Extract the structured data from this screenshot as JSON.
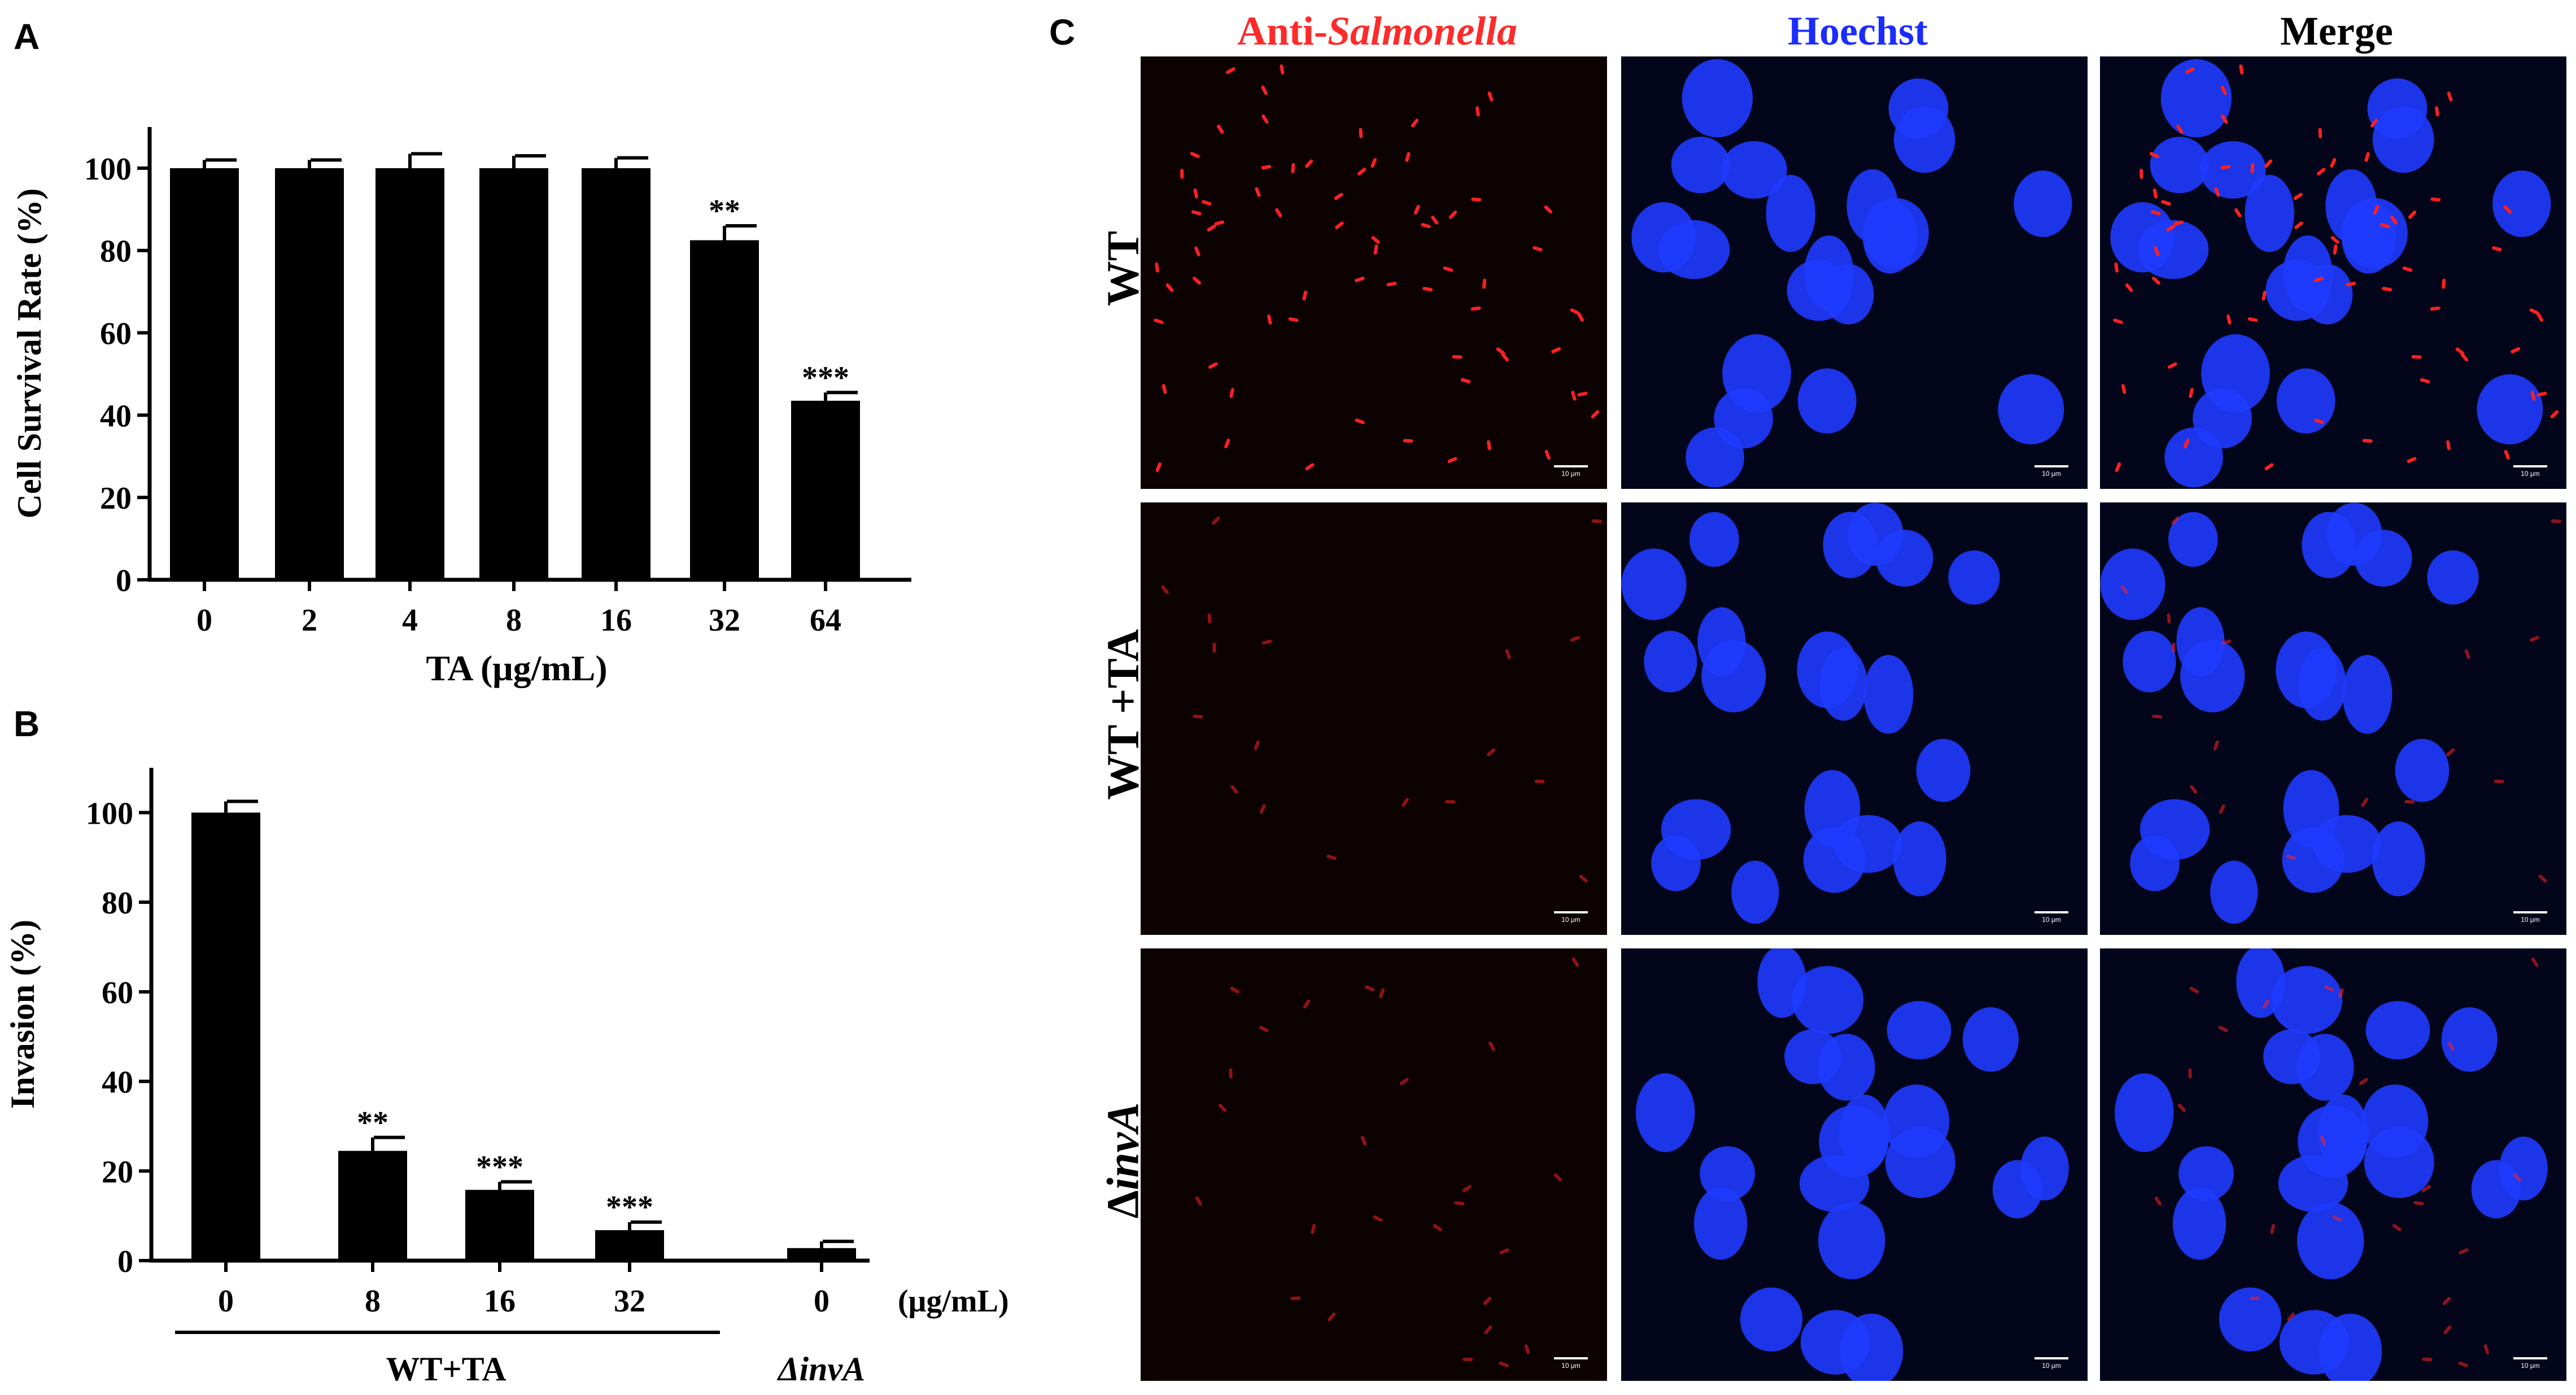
{
  "panels": {
    "A": {
      "letter": "A",
      "chart_data": {
        "type": "bar",
        "categories": [
          "0",
          "2",
          "4",
          "8",
          "16",
          "32",
          "64"
        ],
        "values": [
          100,
          100,
          100,
          100,
          100,
          82.5,
          43.5
        ],
        "errors": [
          2,
          2,
          3.5,
          3,
          2.5,
          3.5,
          2
        ],
        "significance": [
          "",
          "",
          "",
          "",
          "",
          "**",
          "***"
        ],
        "ylabel": "Cell Survival Rate (%)",
        "xlabel": "TA  (μg/mL)",
        "ylim": [
          0,
          110
        ],
        "yticks": [
          0,
          20,
          40,
          60,
          80,
          100
        ]
      }
    },
    "B": {
      "letter": "B",
      "chart_data": {
        "type": "bar",
        "categories": [
          "0",
          "8",
          "16",
          "32",
          "0"
        ],
        "values": [
          100,
          24.5,
          15.8,
          6.8,
          2.8
        ],
        "errors": [
          2.5,
          3,
          1.8,
          1.8,
          1.5
        ],
        "significance": [
          "",
          "**",
          "***",
          "***",
          ""
        ],
        "unit_label": "(μg/mL)",
        "ylabel": "Invasion (%)",
        "ylim": [
          0,
          110
        ],
        "yticks": [
          0,
          20,
          40,
          60,
          80,
          100
        ],
        "group_labels": [
          "WT+TA",
          "ΔinvA"
        ]
      }
    },
    "C": {
      "letter": "C",
      "column_titles": [
        {
          "prefix": "Anti-",
          "italic": "Salmonella",
          "color": "#ff2a2a"
        },
        {
          "text": "Hoechst",
          "color": "#1a2cff"
        },
        {
          "text": "Merge",
          "color": "#000000"
        }
      ],
      "row_labels": [
        {
          "text": "WT",
          "italic": false
        },
        {
          "text": "WT +TA",
          "italic": false
        },
        {
          "prefix": "Δ",
          "italic_text": "invA"
        }
      ],
      "scale_bar_text": "10 μm"
    }
  }
}
